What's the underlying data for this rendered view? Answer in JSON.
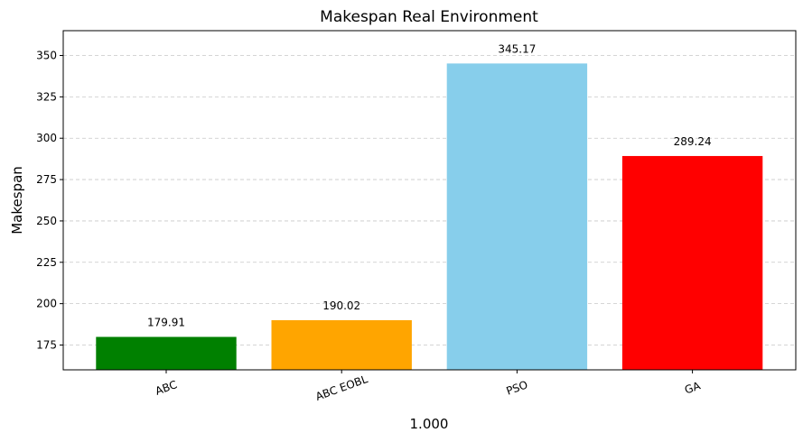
{
  "chart_data": {
    "type": "bar",
    "title": "Makespan Real Environment",
    "xlabel": "1.000",
    "ylabel": "Makespan",
    "categories": [
      "ABC",
      "ABC EOBL",
      "PSO",
      "GA"
    ],
    "values": [
      179.91,
      190.02,
      345.17,
      289.24
    ],
    "value_labels": [
      "179.91",
      "190.02",
      "345.17",
      "289.24"
    ],
    "colors": [
      "#008000",
      "#ffa500",
      "#87ceeb",
      "#ff0000"
    ],
    "ylim": [
      160,
      365
    ],
    "yticks": [
      175,
      200,
      225,
      250,
      275,
      300,
      325,
      350
    ],
    "ytick_labels": [
      "175",
      "200",
      "225",
      "250",
      "275",
      "300",
      "325",
      "350"
    ],
    "grid": "y-dashed",
    "xtick_rotation": 20
  }
}
